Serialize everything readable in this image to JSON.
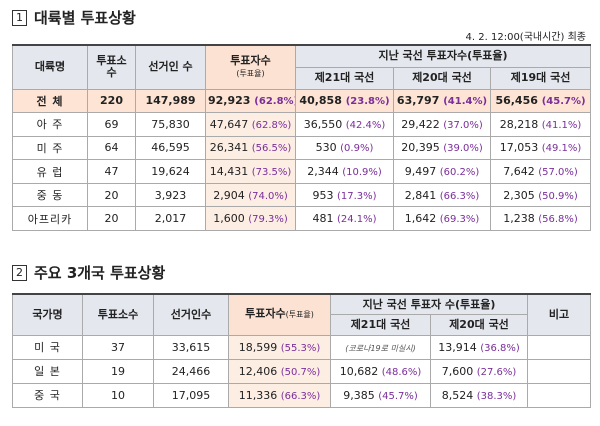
{
  "section1": {
    "number": "1",
    "title": "대륙별 투표상황",
    "note": "4. 2. 12:00(국내시간) 최종",
    "table": {
      "header": {
        "region": "대륙명",
        "stations": "투표소 수",
        "electors": "선거인 수",
        "turnout": "투표자수",
        "turnout_sub": "(투표율)",
        "past": "지난 국선 투표자수(투표율)",
        "past_cols": [
          "제21대 국선",
          "제20대 국선",
          "제19대 국선"
        ]
      },
      "rows": [
        {
          "name": "전 체",
          "stations": "220",
          "electors": "147,989",
          "turnout": {
            "count": "92,923",
            "rate": "(62.8%)"
          },
          "past": [
            {
              "count": "40,858",
              "rate": "(23.8%)"
            },
            {
              "count": "63,797",
              "rate": "(41.4%)"
            },
            {
              "count": "56,456",
              "rate": "(45.7%)"
            }
          ]
        },
        {
          "name": "아 주",
          "stations": "69",
          "electors": "75,830",
          "turnout": {
            "count": "47,647",
            "rate": "(62.8%)"
          },
          "past": [
            {
              "count": "36,550",
              "rate": "(42.4%)"
            },
            {
              "count": "29,422",
              "rate": "(37.0%)"
            },
            {
              "count": "28,218",
              "rate": "(41.1%)"
            }
          ]
        },
        {
          "name": "미 주",
          "stations": "64",
          "electors": "46,595",
          "turnout": {
            "count": "26,341",
            "rate": "(56.5%)"
          },
          "past": [
            {
              "count": "530",
              "rate": "(0.9%)"
            },
            {
              "count": "20,395",
              "rate": "(39.0%)"
            },
            {
              "count": "17,053",
              "rate": "(49.1%)"
            }
          ]
        },
        {
          "name": "유 럽",
          "stations": "47",
          "electors": "19,624",
          "turnout": {
            "count": "14,431",
            "rate": "(73.5%)"
          },
          "past": [
            {
              "count": "2,344",
              "rate": "(10.9%)"
            },
            {
              "count": "9,497",
              "rate": "(60.2%)"
            },
            {
              "count": "7,642",
              "rate": "(57.0%)"
            }
          ]
        },
        {
          "name": "중 동",
          "stations": "20",
          "electors": "3,923",
          "turnout": {
            "count": "2,904",
            "rate": "(74.0%)"
          },
          "past": [
            {
              "count": "953",
              "rate": "(17.3%)"
            },
            {
              "count": "2,841",
              "rate": "(66.3%)"
            },
            {
              "count": "2,305",
              "rate": "(50.9%)"
            }
          ]
        },
        {
          "name": "아프리카",
          "stations": "20",
          "electors": "2,017",
          "turnout": {
            "count": "1,600",
            "rate": "(79.3%)"
          },
          "past": [
            {
              "count": "481",
              "rate": "(24.1%)"
            },
            {
              "count": "1,642",
              "rate": "(69.3%)"
            },
            {
              "count": "1,238",
              "rate": "(56.8%)"
            }
          ]
        }
      ]
    }
  },
  "section2": {
    "number": "2",
    "title": "주요 3개국 투표상황",
    "table": {
      "header": {
        "country": "국가명",
        "stations": "투표소수",
        "electors": "선거인수",
        "turnout": "투표자수",
        "turnout_sub": "(투표율)",
        "past": "지난 국선 투표자 수(투표율)",
        "remarks": "비고",
        "past_cols": [
          "제21대 국선",
          "제20대 국선"
        ]
      },
      "rows": [
        {
          "name": "미 국",
          "stations": "37",
          "electors": "33,615",
          "turnout": {
            "count": "18,599",
            "rate": "(55.3%)"
          },
          "past": [
            {
              "note": "(코로나19로 미실시)"
            },
            {
              "count": "13,914",
              "rate": "(36.8%)"
            }
          ]
        },
        {
          "name": "일 본",
          "stations": "19",
          "electors": "24,466",
          "turnout": {
            "count": "12,406",
            "rate": "(50.7%)"
          },
          "past": [
            {
              "count": "10,682",
              "rate": "(48.6%)"
            },
            {
              "count": "7,600",
              "rate": "(27.6%)"
            }
          ]
        },
        {
          "name": "중 국",
          "stations": "10",
          "electors": "17,095",
          "turnout": {
            "count": "11,336",
            "rate": "(66.3%)"
          },
          "past": [
            {
              "count": "9,385",
              "rate": "(45.7%)"
            },
            {
              "count": "8,524",
              "rate": "(38.3%)"
            }
          ]
        }
      ]
    }
  }
}
